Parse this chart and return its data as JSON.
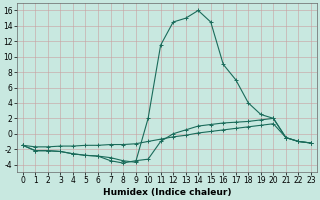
{
  "title": "",
  "xlabel": "Humidex (Indice chaleur)",
  "ylabel": "",
  "background_color": "#c8e8e0",
  "grid_color": "#c8a0a0",
  "line_color": "#1a6b5a",
  "xlim": [
    -0.5,
    23.5
  ],
  "ylim": [
    -5,
    17
  ],
  "yticks": [
    -4,
    -2,
    0,
    2,
    4,
    6,
    8,
    10,
    12,
    14,
    16
  ],
  "xticks": [
    0,
    1,
    2,
    3,
    4,
    5,
    6,
    7,
    8,
    9,
    10,
    11,
    12,
    13,
    14,
    15,
    16,
    17,
    18,
    19,
    20,
    21,
    22,
    23
  ],
  "x": [
    0,
    1,
    2,
    3,
    4,
    5,
    6,
    7,
    8,
    9,
    10,
    11,
    12,
    13,
    14,
    15,
    16,
    17,
    18,
    19,
    20,
    21,
    22,
    23
  ],
  "line1": [
    -1.5,
    -2.2,
    -2.2,
    -2.3,
    -2.6,
    -2.8,
    -2.9,
    -3.1,
    -3.5,
    -3.7,
    2.0,
    11.5,
    14.5,
    15.0,
    16.0,
    14.5,
    9.0,
    7.0,
    4.0,
    2.5,
    2.0,
    -0.5,
    -1.0,
    -1.2
  ],
  "line2": [
    -1.5,
    -2.2,
    -2.2,
    -2.3,
    -2.6,
    -2.8,
    -2.9,
    -3.5,
    -3.8,
    -3.5,
    -3.3,
    -1.0,
    0.0,
    0.5,
    1.0,
    1.2,
    1.4,
    1.5,
    1.6,
    1.8,
    2.0,
    -0.5,
    -1.0,
    -1.2
  ],
  "line3": [
    -1.5,
    -1.7,
    -1.7,
    -1.6,
    -1.6,
    -1.5,
    -1.5,
    -1.4,
    -1.4,
    -1.3,
    -1.0,
    -0.7,
    -0.4,
    -0.2,
    0.1,
    0.3,
    0.5,
    0.7,
    0.9,
    1.1,
    1.3,
    -0.5,
    -1.0,
    -1.2
  ],
  "marker": "+",
  "markersize": 3,
  "linewidth": 0.8,
  "font_size": 5.5,
  "xlabel_fontsize": 6.5
}
